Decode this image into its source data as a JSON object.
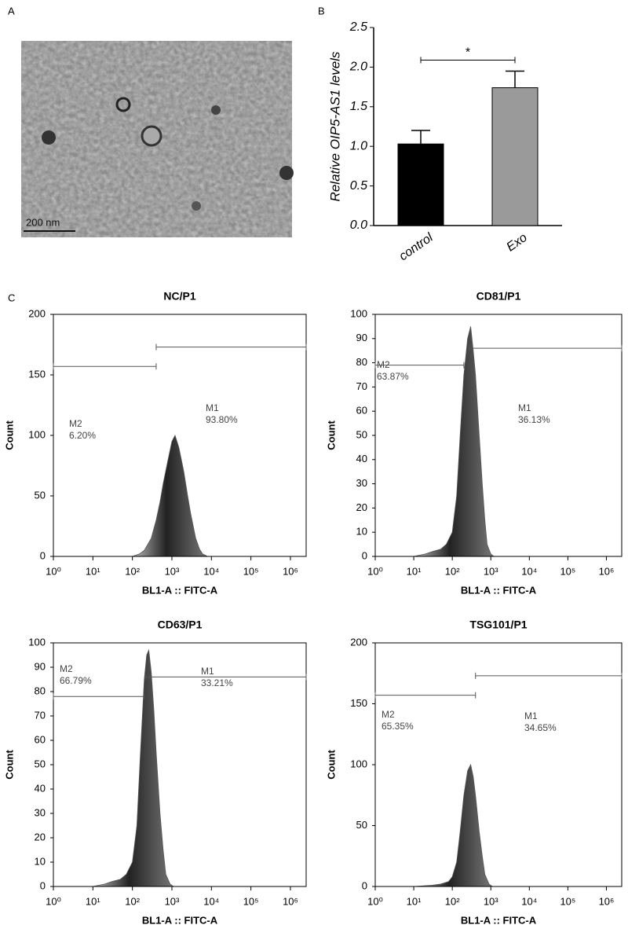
{
  "panel_labels": [
    "A",
    "B",
    "C"
  ],
  "image": {
    "scale_bar": "200 nm"
  },
  "chart_data": [
    {
      "type": "bar",
      "ylabel": "Relative OIP5-AS1 levels",
      "categories": [
        "control",
        "Exo"
      ],
      "values": [
        1.03,
        1.74
      ],
      "errors": [
        0.17,
        0.21
      ],
      "colors": [
        "#000000",
        "#9a9a9a"
      ],
      "annotations": [
        "*"
      ],
      "ylim": [
        0,
        2.5
      ],
      "yticks": [
        {
          "value": 0,
          "label": "0.0"
        },
        0.5,
        {
          "value": 1,
          "label": "1.0"
        },
        1.5,
        {
          "value": 2,
          "label": "2.0"
        },
        2.5
      ]
    },
    {
      "type": "area",
      "title": "NC/P1",
      "xlabel": "BL1-A :: FITC-A",
      "ylabel": "Count",
      "color": "#555555",
      "xscale": "log",
      "x": [
        100,
        150,
        200,
        300,
        400,
        500,
        600,
        800,
        1000,
        1200,
        1500,
        2000,
        2500,
        3000,
        4000,
        5000,
        6000,
        8000
      ],
      "values": [
        0,
        2,
        5,
        15,
        30,
        45,
        60,
        80,
        95,
        100,
        90,
        70,
        50,
        35,
        15,
        6,
        2,
        0
      ],
      "xlim": [
        1,
        2500000
      ],
      "xticks": [
        {
          "value": 1,
          "label": "10⁰"
        },
        {
          "value": 10,
          "label": "10¹"
        },
        {
          "value": 100,
          "label": "10²"
        },
        {
          "value": 1000,
          "label": "10³"
        },
        {
          "value": 10000,
          "label": "10⁴"
        },
        {
          "value": 100000,
          "label": "10⁵"
        },
        {
          "value": 1000000,
          "label": "10⁶"
        }
      ],
      "ylim": [
        0,
        200
      ],
      "yticks": [
        0,
        50,
        100,
        150,
        200
      ],
      "gates": [
        {
          "name": "M2",
          "value": 6.2,
          "value_label": "6.20%",
          "range": [
            1,
            400
          ],
          "level": 157
        },
        {
          "name": "M1",
          "value": 93.8,
          "value_label": "93.80%",
          "range": [
            400,
            2500000
          ],
          "level": 173
        }
      ]
    },
    {
      "type": "area",
      "title": "CD81/P1",
      "xlabel": "BL1-A :: FITC-A",
      "ylabel": "Count",
      "color": "#555555",
      "xscale": "log",
      "x": [
        10,
        20,
        30,
        50,
        70,
        100,
        130,
        160,
        200,
        250,
        300,
        350,
        400,
        500,
        600,
        700,
        800,
        1000,
        1200
      ],
      "values": [
        0,
        1,
        2,
        3,
        5,
        10,
        25,
        50,
        75,
        90,
        95,
        85,
        75,
        50,
        30,
        15,
        5,
        1,
        0
      ],
      "xlim": [
        1,
        2500000
      ],
      "xticks": [
        {
          "value": 1,
          "label": "10⁰"
        },
        {
          "value": 10,
          "label": "10¹"
        },
        {
          "value": 100,
          "label": "10²"
        },
        {
          "value": 1000,
          "label": "10³"
        },
        {
          "value": 10000,
          "label": "10⁴"
        },
        {
          "value": 100000,
          "label": "10⁵"
        },
        {
          "value": 1000000,
          "label": "10⁶"
        }
      ],
      "ylim": [
        0,
        100
      ],
      "yticks": [
        0,
        10,
        20,
        30,
        40,
        50,
        60,
        70,
        80,
        90,
        100
      ],
      "gates": [
        {
          "name": "M2",
          "value": 63.87,
          "value_label": "63.87%",
          "range": [
            1,
            200
          ],
          "level": 79
        },
        {
          "name": "M1",
          "value": 36.13,
          "value_label": "36.13%",
          "range": [
            275,
            2500000
          ],
          "level": 86
        }
      ]
    },
    {
      "type": "area",
      "title": "CD63/P1",
      "xlabel": "BL1-A :: FITC-A",
      "ylabel": "Count",
      "color": "#555555",
      "xscale": "log",
      "x": [
        10,
        20,
        30,
        50,
        70,
        100,
        130,
        160,
        200,
        230,
        260,
        300,
        350,
        400,
        500,
        600,
        700,
        900,
        1100
      ],
      "values": [
        0,
        1,
        2,
        3,
        5,
        10,
        25,
        55,
        85,
        95,
        97,
        88,
        72,
        55,
        30,
        15,
        5,
        1,
        0
      ],
      "xlim": [
        1,
        2500000
      ],
      "xticks": [
        {
          "value": 1,
          "label": "10⁰"
        },
        {
          "value": 10,
          "label": "10¹"
        },
        {
          "value": 100,
          "label": "10²"
        },
        {
          "value": 1000,
          "label": "10³"
        },
        {
          "value": 10000,
          "label": "10⁴"
        },
        {
          "value": 100000,
          "label": "10⁵"
        },
        {
          "value": 1000000,
          "label": "10⁶"
        }
      ],
      "ylim": [
        0,
        100
      ],
      "yticks": [
        0,
        10,
        20,
        30,
        40,
        50,
        60,
        70,
        80,
        90,
        100
      ],
      "gates": [
        {
          "name": "M2",
          "value": 66.79,
          "value_label": "66.79%",
          "range": [
            1,
            200
          ],
          "level": 78
        },
        {
          "name": "M1",
          "value": 33.21,
          "value_label": "33.21%",
          "range": [
            220,
            2500000
          ],
          "level": 86
        }
      ]
    },
    {
      "type": "area",
      "title": "TSG101/P1",
      "xlabel": "BL1-A :: FITC-A",
      "ylabel": "Count",
      "color": "#555555",
      "xscale": "log",
      "x": [
        10,
        30,
        50,
        80,
        100,
        130,
        160,
        200,
        250,
        300,
        350,
        400,
        500,
        600,
        700,
        900,
        1100
      ],
      "values": [
        0,
        1,
        2,
        4,
        8,
        20,
        45,
        75,
        95,
        100,
        90,
        75,
        45,
        25,
        10,
        2,
        0
      ],
      "xlim": [
        1,
        2500000
      ],
      "xticks": [
        {
          "value": 1,
          "label": "10⁰"
        },
        {
          "value": 10,
          "label": "10¹"
        },
        {
          "value": 100,
          "label": "10²"
        },
        {
          "value": 1000,
          "label": "10³"
        },
        {
          "value": 10000,
          "label": "10⁴"
        },
        {
          "value": 100000,
          "label": "10⁵"
        },
        {
          "value": 1000000,
          "label": "10⁶"
        }
      ],
      "ylim": [
        0,
        200
      ],
      "yticks": [
        0,
        50,
        100,
        150,
        200
      ],
      "gates": [
        {
          "name": "M2",
          "value": 65.35,
          "value_label": "65.35%",
          "range": [
            1,
            400
          ],
          "level": 157
        },
        {
          "name": "M1",
          "value": 34.65,
          "value_label": "34.65%",
          "range": [
            400,
            2500000
          ],
          "level": 173
        }
      ]
    }
  ]
}
